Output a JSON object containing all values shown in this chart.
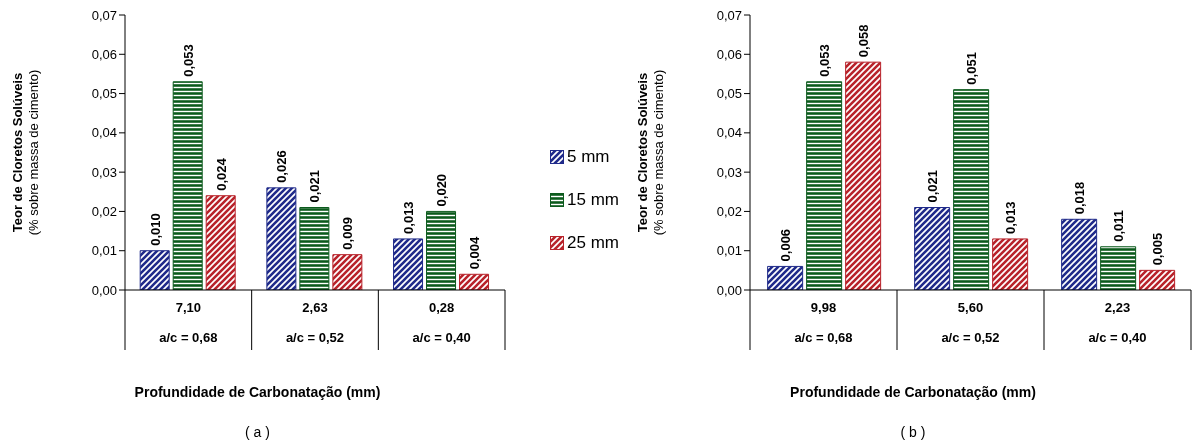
{
  "chart_data": [
    {
      "type": "bar",
      "title": "( a )",
      "xlabel": "Profundidade de Carbonatação (mm)",
      "ylabel": "Teor de Cloretos Solúveis\n(% sobre massa de cimento)",
      "categories": [
        "7,10\na/c = 0,68",
        "2,63\na/c = 0,52",
        "0,28\na/c = 0,40"
      ],
      "series": [
        {
          "name": "5 mm",
          "color": "#1f2a8a",
          "values": [
            0.01,
            0.026,
            0.013
          ],
          "value_labels": [
            "0,010",
            "0,026",
            "0,013"
          ]
        },
        {
          "name": "15 mm",
          "color": "#0b5a1c",
          "values": [
            0.053,
            0.021,
            0.02
          ],
          "value_labels": [
            "0,053",
            "0,021",
            "0,020"
          ]
        },
        {
          "name": "25 mm",
          "color": "#b8222a",
          "values": [
            0.024,
            0.009,
            0.004
          ],
          "value_labels": [
            "0,024",
            "0,009",
            "0,004"
          ]
        }
      ],
      "ylim": [
        0,
        0.07
      ],
      "yticks": [
        {
          "value": 0,
          "label": "0,00"
        },
        {
          "value": 0.01,
          "label": "0,01"
        },
        {
          "value": 0.02,
          "label": "0,02"
        },
        {
          "value": 0.03,
          "label": "0,03"
        },
        {
          "value": 0.04,
          "label": "0,04"
        },
        {
          "value": 0.05,
          "label": "0,05"
        },
        {
          "value": 0.06,
          "label": "0,06"
        },
        {
          "value": 0.07,
          "label": "0,07"
        }
      ],
      "legend": "right"
    },
    {
      "type": "bar",
      "title": "( b )",
      "xlabel": "Profundidade de Carbonatação (mm)",
      "ylabel": "Teor de Cloretos Solúveis\n(% sobre massa de cimento)",
      "categories": [
        "9,98\na/c = 0,68",
        "5,60\na/c = 0,52",
        "2,23\na/c = 0,40"
      ],
      "series": [
        {
          "color": "#1f2a8a",
          "values": [
            0.006,
            0.021,
            0.018
          ],
          "value_labels": [
            "0,006",
            "0,021",
            "0,018"
          ]
        },
        {
          "color": "#0b5a1c",
          "values": [
            0.053,
            0.051,
            0.011
          ],
          "value_labels": [
            "0,053",
            "0,051",
            "0,011"
          ]
        },
        {
          "color": "#b8222a",
          "values": [
            0.058,
            0.013,
            0.005
          ],
          "value_labels": [
            "0,058",
            "0,013",
            "0,005"
          ]
        }
      ],
      "ylim": [
        0,
        0.07
      ],
      "yticks": [
        {
          "value": 0,
          "label": "0,00"
        },
        {
          "value": 0.01,
          "label": "0,01"
        },
        {
          "value": 0.02,
          "label": "0,02"
        },
        {
          "value": 0.03,
          "label": "0,03"
        },
        {
          "value": 0.04,
          "label": "0,04"
        },
        {
          "value": 0.05,
          "label": "0,05"
        },
        {
          "value": 0.06,
          "label": "0,06"
        },
        {
          "value": 0.07,
          "label": "0,07"
        }
      ]
    }
  ]
}
